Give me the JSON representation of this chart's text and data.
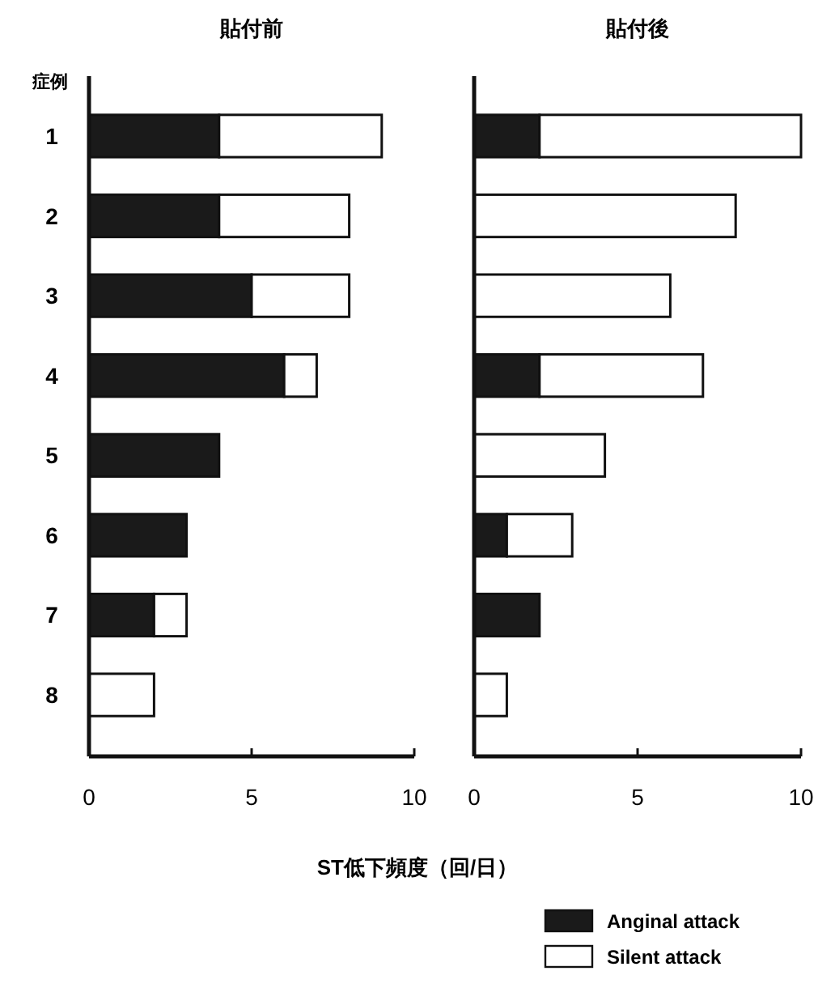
{
  "chart_data": [
    {
      "type": "bar",
      "orientation": "horizontal",
      "stacked": true,
      "title": "貼付前",
      "ylabel": "症例",
      "xlabel": "ST低下頻度（回/日）",
      "categories": [
        "1",
        "2",
        "3",
        "4",
        "5",
        "6",
        "7",
        "8"
      ],
      "series": [
        {
          "name": "Anginal attack",
          "color": "#1a1a1a",
          "values": [
            4,
            4,
            5,
            6,
            4,
            3,
            2,
            0
          ]
        },
        {
          "name": "Silent attack",
          "color": "#ffffff",
          "values": [
            5,
            4,
            3,
            1,
            0,
            0,
            1,
            2
          ]
        }
      ],
      "xlim": [
        0,
        10
      ],
      "xticks": [
        0,
        5,
        10
      ],
      "legend": "bottom right"
    },
    {
      "type": "bar",
      "orientation": "horizontal",
      "stacked": true,
      "title": "貼付後",
      "categories": [
        null,
        null,
        null,
        null,
        null,
        null,
        null,
        null
      ],
      "series": [
        {
          "color": "#1a1a1a",
          "values": [
            2,
            0,
            0,
            2,
            0,
            1,
            2,
            0
          ]
        },
        {
          "color": "#ffffff",
          "values": [
            8,
            8,
            6,
            5,
            4,
            2,
            0,
            1
          ]
        }
      ],
      "xlim": [
        0,
        10
      ],
      "xticks": [
        0,
        5,
        10
      ],
      "tick_labels": "x"
    }
  ]
}
